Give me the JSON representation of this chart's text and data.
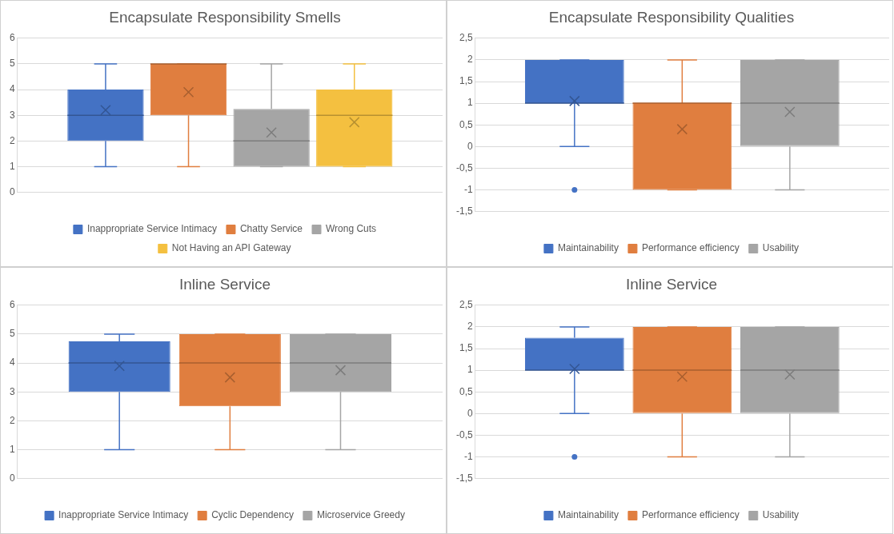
{
  "chart_data": [
    {
      "type": "box",
      "title": "Encapsulate Responsibility Smells",
      "categories": [
        null
      ],
      "ylim": [
        0,
        6
      ],
      "yticks": [
        0,
        1,
        2,
        3,
        4,
        5,
        6
      ],
      "grid": "y",
      "legend": "bottom",
      "series": [
        {
          "name": "Inappropriate Service Intimacy",
          "color": "#4472c4",
          "boxes": [
            {
              "low": 1,
              "q1": 2,
              "median": 3,
              "q3": 4,
              "high": 5,
              "mean": 3.2
            }
          ]
        },
        {
          "name": "Chatty Service",
          "color": "#e07e3f",
          "boxes": [
            {
              "low": 1,
              "q1": 3,
              "median": 5,
              "q3": 5,
              "high": 5,
              "mean": 3.9
            }
          ]
        },
        {
          "name": "Wrong Cuts",
          "color": "#a5a5a5",
          "boxes": [
            {
              "low": 1,
              "q1": 1,
              "median": 2,
              "q3": 3.25,
              "high": 5,
              "mean": 2.33
            }
          ]
        },
        {
          "name": "Not Having an API Gateway",
          "color": "#f4c040",
          "boxes": [
            {
              "low": 1,
              "q1": 1,
              "median": 3,
              "q3": 4,
              "high": 5,
              "mean": 2.73
            }
          ]
        }
      ]
    },
    {
      "type": "box",
      "title": "Encapsulate Responsibility Qualities",
      "categories": [
        null
      ],
      "ylim": [
        -1.5,
        2.5
      ],
      "yticks": [
        {
          "value": -1.5,
          "label": "-1,5"
        },
        -1,
        {
          "value": -0.5,
          "label": "-0,5"
        },
        0,
        {
          "value": 0.5,
          "label": "0,5"
        },
        1,
        {
          "value": 1.5,
          "label": "1,5"
        },
        2,
        {
          "value": 2.5,
          "label": "2,5"
        }
      ],
      "grid": "y",
      "legend": "bottom",
      "series": [
        {
          "name": "Maintainability",
          "color": "#4472c4",
          "boxes": [
            {
              "low": 0,
              "q1": 1,
              "median": 1,
              "q3": 2,
              "high": 2,
              "mean": 1.05,
              "outliers": [
                -1
              ]
            }
          ]
        },
        {
          "name": "Performance efficiency",
          "color": "#e07e3f",
          "boxes": [
            {
              "low": -1,
              "q1": -1,
              "median": 1,
              "q3": 1,
              "high": 2,
              "mean": 0.4
            }
          ]
        },
        {
          "name": "Usability",
          "color": "#a5a5a5",
          "boxes": [
            {
              "low": -1,
              "q1": 0,
              "median": 1,
              "q3": 2,
              "high": 2,
              "mean": 0.8
            }
          ]
        }
      ]
    },
    {
      "type": "box",
      "title": "Inline Service",
      "categories": [
        null
      ],
      "ylim": [
        0,
        6
      ],
      "yticks": [
        0,
        1,
        2,
        3,
        4,
        5,
        6
      ],
      "grid": "y",
      "legend": "bottom",
      "series": [
        {
          "name": "Inappropriate Service Intimacy",
          "color": "#4472c4",
          "boxes": [
            {
              "low": 1,
              "q1": 3,
              "median": 4,
              "q3": 4.75,
              "high": 5,
              "mean": 3.9
            }
          ]
        },
        {
          "name": "Cyclic Dependency",
          "color": "#e07e3f",
          "boxes": [
            {
              "low": 1,
              "q1": 2.5,
              "median": 4,
              "q3": 5,
              "high": 5,
              "mean": 3.5
            }
          ]
        },
        {
          "name": "Microservice Greedy",
          "color": "#a5a5a5",
          "boxes": [
            {
              "low": 1,
              "q1": 3,
              "median": 4,
              "q3": 5,
              "high": 5,
              "mean": 3.75
            }
          ]
        }
      ]
    },
    {
      "type": "box",
      "title": "Inline Service",
      "categories": [
        null
      ],
      "ylim": [
        -1.5,
        2.5
      ],
      "yticks": [
        {
          "value": -1.5,
          "label": "-1,5"
        },
        -1,
        {
          "value": -0.5,
          "label": "-0,5"
        },
        0,
        {
          "value": 0.5,
          "label": "0,5"
        },
        1,
        {
          "value": 1.5,
          "label": "1,5"
        },
        2,
        {
          "value": 2.5,
          "label": "2,5"
        }
      ],
      "grid": "y",
      "legend": "bottom",
      "series": [
        {
          "name": "Maintainability",
          "color": "#4472c4",
          "boxes": [
            {
              "low": 0,
              "q1": 1,
              "median": 1,
              "q3": 1.75,
              "high": 2,
              "mean": 1.03,
              "outliers": [
                -1
              ]
            }
          ]
        },
        {
          "name": "Performance efficiency",
          "color": "#e07e3f",
          "boxes": [
            {
              "low": -1,
              "q1": 0,
              "median": 1,
              "q3": 2,
              "high": 2,
              "mean": 0.85
            }
          ]
        },
        {
          "name": "Usability",
          "color": "#a5a5a5",
          "boxes": [
            {
              "low": -1,
              "q1": 0,
              "median": 1,
              "q3": 2,
              "high": 2,
              "mean": 0.9
            }
          ]
        }
      ]
    }
  ]
}
